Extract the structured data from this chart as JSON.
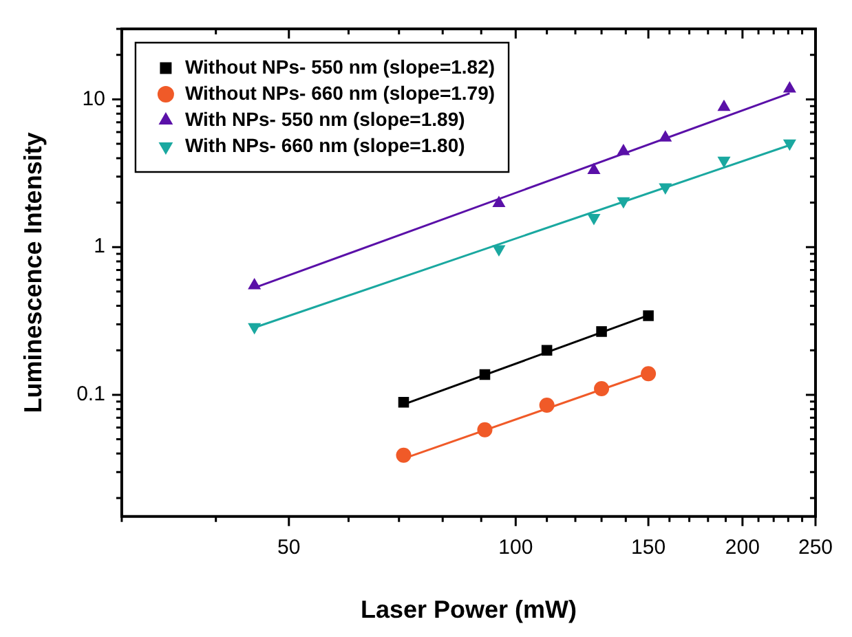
{
  "chart_data": {
    "type": "scatter",
    "xlabel": "Laser Power (mW)",
    "ylabel": "Luminescence Intensity",
    "log": "xy",
    "xlim": [
      30,
      250
    ],
    "ylim": [
      0.015,
      30
    ],
    "xticks": [
      {
        "value": 30,
        "label": null
      },
      {
        "value": 40,
        "label": null
      },
      50,
      {
        "value": 60,
        "label": null
      },
      {
        "value": 70,
        "label": null
      },
      {
        "value": 80,
        "label": null
      },
      {
        "value": 90,
        "label": null
      },
      100,
      {
        "value": 110,
        "label": null
      },
      {
        "value": 120,
        "label": null
      },
      {
        "value": 130,
        "label": null
      },
      {
        "value": 140,
        "label": null
      },
      150,
      {
        "value": 160,
        "label": null
      },
      {
        "value": 170,
        "label": null
      },
      {
        "value": 180,
        "label": null
      },
      {
        "value": 190,
        "label": null
      },
      200,
      {
        "value": 210,
        "label": null
      },
      {
        "value": 220,
        "label": null
      },
      {
        "value": 230,
        "label": null
      },
      {
        "value": 240,
        "label": null
      },
      250
    ],
    "yticks": [
      {
        "value": 0.02,
        "label": null
      },
      {
        "value": 0.03,
        "label": null
      },
      {
        "value": 0.04,
        "label": null
      },
      {
        "value": 0.05,
        "label": null
      },
      {
        "value": 0.06,
        "label": null
      },
      {
        "value": 0.07,
        "label": null
      },
      {
        "value": 0.08,
        "label": null
      },
      {
        "value": 0.09,
        "label": null
      },
      0.1,
      {
        "value": 0.2,
        "label": null
      },
      {
        "value": 0.3,
        "label": null
      },
      {
        "value": 0.4,
        "label": null
      },
      {
        "value": 0.5,
        "label": null
      },
      {
        "value": 0.6,
        "label": null
      },
      {
        "value": 0.7,
        "label": null
      },
      {
        "value": 0.8,
        "label": null
      },
      {
        "value": 0.9,
        "label": null
      },
      1,
      {
        "value": 2,
        "label": null
      },
      {
        "value": 3,
        "label": null
      },
      {
        "value": 4,
        "label": null
      },
      {
        "value": 5,
        "label": null
      },
      {
        "value": 6,
        "label": null
      },
      {
        "value": 7,
        "label": null
      },
      {
        "value": 8,
        "label": null
      },
      {
        "value": 9,
        "label": null
      },
      10,
      {
        "value": 20,
        "label": null
      },
      {
        "value": 30,
        "label": null
      }
    ],
    "grid": false,
    "legend": "top left",
    "series": [
      {
        "name": "Without NPs- 550 nm (slope=1.82)",
        "type": "scatter",
        "marker": "square",
        "color": "#000000",
        "x": [
          71,
          91,
          110,
          130,
          150
        ],
        "values": [
          0.089,
          0.137,
          0.2,
          0.268,
          0.343
        ]
      },
      {
        "name": "Without NPs- 660 nm (slope=1.79)",
        "type": "scatter",
        "marker": "circle",
        "color": "#f05a28",
        "x": [
          71,
          91,
          110,
          130,
          150
        ],
        "values": [
          0.039,
          0.058,
          0.085,
          0.11,
          0.139
        ]
      },
      {
        "name": "With NPs- 550 nm (slope=1.89)",
        "type": "scatter",
        "marker": "triangle",
        "color": "#5a10a8",
        "x": [
          45,
          95,
          127,
          139,
          158,
          189,
          231
        ],
        "values": [
          0.55,
          1.98,
          3.31,
          4.45,
          5.5,
          8.87,
          11.8
        ]
      },
      {
        "name": "With NPs- 660 nm (slope=1.80)",
        "type": "scatter",
        "marker": "triangle-down",
        "color": "#1aa8a0",
        "x": [
          45,
          95,
          127,
          139,
          158,
          189,
          231
        ],
        "values": [
          0.288,
          0.97,
          1.58,
          2.05,
          2.55,
          3.86,
          5.05
        ]
      },
      {
        "type": "line",
        "marker": "none",
        "color": "#000000",
        "x": [
          71,
          150
        ],
        "values": [
          0.086,
          0.345
        ]
      },
      {
        "type": "line",
        "marker": "none",
        "color": "#f05a28",
        "x": [
          71,
          150
        ],
        "values": [
          0.037,
          0.14
        ]
      },
      {
        "type": "line",
        "marker": "none",
        "color": "#5a10a8",
        "x": [
          45,
          231
        ],
        "values": [
          0.53,
          11
        ]
      },
      {
        "type": "line",
        "marker": "none",
        "color": "#1aa8a0",
        "x": [
          45,
          231
        ],
        "values": [
          0.285,
          4.9
        ]
      }
    ]
  }
}
